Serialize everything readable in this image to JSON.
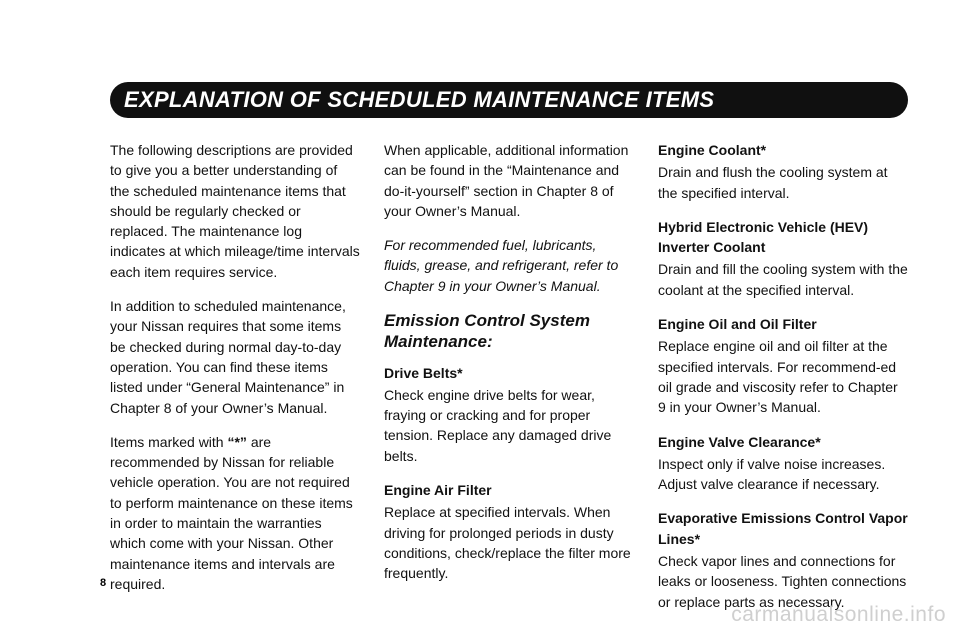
{
  "header": {
    "title": "EXPLANATION OF SCHEDULED MAINTENANCE ITEMS",
    "bg_color": "#101010",
    "text_color": "#ffffff",
    "fontsize": 22
  },
  "body": {
    "text_color": "#111111",
    "fontsize": 14,
    "line_height": 1.45
  },
  "columns": {
    "col1": {
      "p1": "The following descriptions are provided to give you a better understanding of the scheduled maintenance items that should be regularly checked or replaced.  The maintenance log indicates at which mileage/time intervals each item requires service.",
      "p2": "In addition to scheduled maintenance, your Nissan requires that some items be checked during normal day-to-day operation. You can find these items listed under “General Maintenance” in Chapter 8 of your Owner’s Manual.",
      "p3_pre": "Items marked with ",
      "p3_mark": "“*”",
      "p3_post": " are recommended by Nissan for reliable vehicle operation. You are not required to perform maintenance on these items in order to maintain the warranties  which come with your Nissan. Other maintenance items and intervals are required."
    },
    "col2": {
      "p1": "When applicable, additional information can be found in the “Maintenance and do-it-yourself” section in Chapter 8 of your Owner’s Manual.",
      "p2_italic": "For recommended fuel, lubricants, fluids, grease, and refrigerant, refer to Chapter 9 in your Owner’s Manual.",
      "section_title": "Emission Control System Maintenance:",
      "item1_title": "Drive Belts*",
      "item1_body": "Check engine drive belts for wear, fraying or cracking and for proper tension.  Replace any damaged drive belts.",
      "item2_title": "Engine Air Filter",
      "item2_body": "Replace at specified intervals.  When driving for prolonged periods in dusty conditions, check/replace the filter more frequently."
    },
    "col3": {
      "item1_title": "Engine Coolant*",
      "item1_body": "Drain and flush the cooling system at the specified interval.",
      "item2_title": "Hybrid Electronic Vehicle (HEV) Inverter Coolant",
      "item2_body": "Drain and fill the cooling system with the coolant at the specified interval.",
      "item3_title": "Engine Oil and Oil Filter",
      "item3_body": "Replace engine oil and oil filter at the specified intervals.  For recommend-ed oil grade and viscosity refer to Chapter 9 in your Owner’s Manual.",
      "item4_title": "Engine Valve Clearance*",
      "item4_body": "Inspect only if valve noise increases. Adjust valve clearance if necessary.",
      "item5_title": "Evaporative Emissions Control Vapor Lines*",
      "item5_body": "Check vapor lines and connections for leaks or looseness. Tighten connections or replace parts as necessary."
    }
  },
  "page_number": "8",
  "watermark": "carmanualsonline.info",
  "watermark_color": "#cfcfcf",
  "background_color": "#ffffff"
}
